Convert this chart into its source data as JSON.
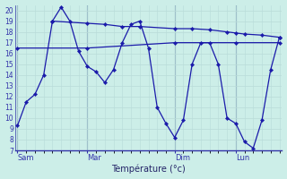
{
  "background_color": "#cceee8",
  "grid_color": "#aadddd",
  "line_color": "#1a1aaa",
  "xlabel": "Température (°c)",
  "ylim": [
    7,
    20.5
  ],
  "yticks": [
    7,
    8,
    9,
    10,
    11,
    12,
    13,
    14,
    15,
    16,
    17,
    18,
    19,
    20
  ],
  "xlim": [
    -0.3,
    30.3
  ],
  "day_positions": [
    0,
    8,
    18,
    25
  ],
  "day_labels": [
    "Sam",
    "Mar",
    "Dim",
    "Lun"
  ],
  "line_min": {
    "x": [
      0,
      1,
      2,
      3,
      4,
      5,
      6,
      7,
      8,
      9,
      10,
      11,
      12,
      13,
      14,
      15,
      16,
      17,
      18,
      19,
      20,
      21,
      22,
      23,
      24,
      25,
      26,
      27,
      28,
      29,
      30
    ],
    "y": [
      9.3,
      11.5,
      12.2,
      14.0,
      19.0,
      20.3,
      19.0,
      16.2,
      14.8,
      14.3,
      13.3,
      14.5,
      17.0,
      18.7,
      19.0,
      16.5,
      11.0,
      9.5,
      8.2,
      9.8,
      15.0,
      17.0,
      17.0,
      15.0,
      10.0,
      9.5,
      7.8,
      7.2,
      9.8,
      14.5,
      17.5
    ]
  },
  "line_mid": {
    "x": [
      0,
      8,
      18,
      25,
      30
    ],
    "y": [
      16.5,
      16.5,
      17.0,
      17.0,
      17.0
    ]
  },
  "line_upper": {
    "x": [
      4,
      8,
      10,
      12,
      14,
      18,
      20,
      22,
      24,
      25,
      26,
      28,
      30
    ],
    "y": [
      19.0,
      18.8,
      18.7,
      18.5,
      18.5,
      18.3,
      18.3,
      18.2,
      18.0,
      17.9,
      17.8,
      17.7,
      17.5
    ]
  }
}
